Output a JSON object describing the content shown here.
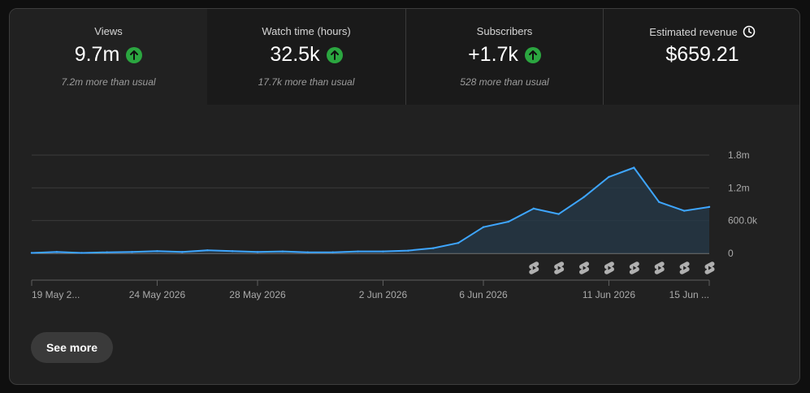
{
  "metrics": [
    {
      "label": "Views",
      "value": "9.7m",
      "trend": "up",
      "sub": "7.2m more than usual"
    },
    {
      "label": "Watch time (hours)",
      "value": "32.5k",
      "trend": "up",
      "sub": "17.7k more than usual"
    },
    {
      "label": "Subscribers",
      "value": "+1.7k",
      "trend": "up",
      "sub": "528 more than usual"
    },
    {
      "label": "Estimated revenue",
      "value": "$659.21",
      "icon": "clock-icon"
    }
  ],
  "see_more_label": "See more",
  "colors": {
    "line": "#3ea6ff",
    "trend_up": "#2ba640",
    "card_bg": "#212121"
  },
  "chart_data": {
    "type": "area",
    "x": [
      "19 May 2026",
      "20 May 2026",
      "21 May 2026",
      "22 May 2026",
      "23 May 2026",
      "24 May 2026",
      "25 May 2026",
      "26 May 2026",
      "27 May 2026",
      "28 May 2026",
      "29 May 2026",
      "30 May 2026",
      "31 May 2026",
      "1 Jun 2026",
      "2 Jun 2026",
      "3 Jun 2026",
      "4 Jun 2026",
      "5 Jun 2026",
      "6 Jun 2026",
      "7 Jun 2026",
      "8 Jun 2026",
      "9 Jun 2026",
      "10 Jun 2026",
      "11 Jun 2026",
      "12 Jun 2026",
      "13 Jun 2026",
      "14 Jun 2026",
      "15 Jun 2026"
    ],
    "series": [
      {
        "values": [
          8000,
          25000,
          8000,
          20000,
          25000,
          40000,
          25000,
          55000,
          40000,
          25000,
          35000,
          20000,
          20000,
          35000,
          35000,
          50000,
          95000,
          190000,
          480000,
          580000,
          820000,
          720000,
          1030000,
          1400000,
          1570000,
          940000,
          780000,
          850000
        ]
      }
    ],
    "x_tick_labels": [
      "19 May 2...",
      "24 May 2026",
      "28 May 2026",
      "2 Jun 2026",
      "6 Jun 2026",
      "11 Jun 2026",
      "15 Jun ..."
    ],
    "x_tick_indices": [
      0,
      5,
      9,
      14,
      18,
      23,
      27
    ],
    "y_tick_labels": [
      "0",
      "600.0k",
      "1.2m",
      "1.8m"
    ],
    "y_tick_values": [
      0,
      600000,
      1200000,
      1800000
    ],
    "ylim": [
      0,
      1800000
    ],
    "marker_indices": [
      20,
      21,
      22,
      23,
      24,
      25,
      26,
      27
    ],
    "marker_icon": "shorts-icon",
    "grid": true
  }
}
